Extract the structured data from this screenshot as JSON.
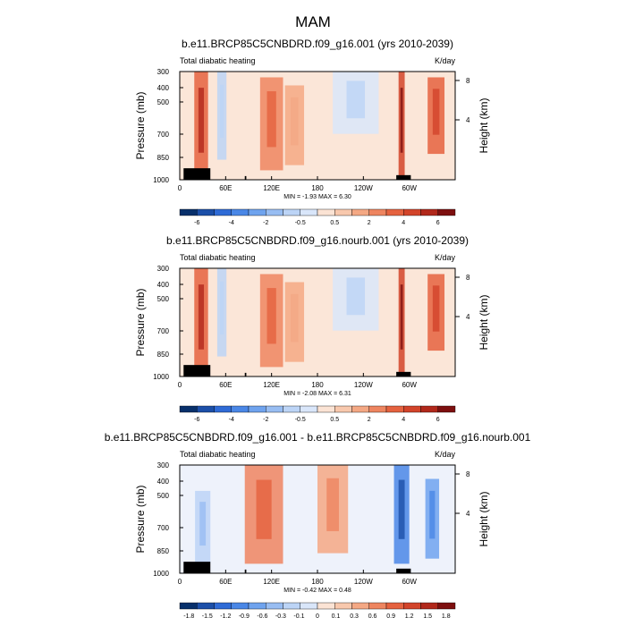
{
  "page": {
    "title": "MAM"
  },
  "chart_data": [
    {
      "type": "heatmap",
      "title": "b.e11.BRCP85C5CNBDRD.f09_g16.001 (yrs 2010-2039)",
      "subtitle_left": "Total diabatic heating",
      "units": "K/day",
      "ylabel": "Pressure (mb)",
      "ylabel_right": "Height (km)",
      "y_ticks": [
        "300",
        "400",
        "500",
        "700",
        "850",
        "1000"
      ],
      "y_ticks_right": [
        "8",
        "4"
      ],
      "x_ticks": [
        "0",
        "60E",
        "120E",
        "180",
        "120W",
        "60W"
      ],
      "minmax": "MIN =  -1.93  MAX =   6.30",
      "min": -1.93,
      "max": 6.3,
      "colorbar_labels": [
        "-6",
        "-4",
        "-2",
        "-0.5",
        "0.5",
        "2",
        "4",
        "6"
      ],
      "colorbar_colors": [
        "#08306b",
        "#1c4fa8",
        "#2f6bd6",
        "#4a87e6",
        "#6fa3ee",
        "#98bdf2",
        "#bcd4f6",
        "#d9e6fa",
        "#fbe3d4",
        "#f8c8ad",
        "#f4a884",
        "#ee8560",
        "#e5623f",
        "#d2442a",
        "#b1281b",
        "#7d0f0f"
      ],
      "features": [
        {
          "name": "band-africa-east",
          "lon": 28,
          "width": 18,
          "value": 4.5,
          "p_top": 300,
          "p_bottom": 1000
        },
        {
          "name": "indian-ocean-min",
          "lon": 55,
          "width": 12,
          "value": -1.2,
          "p_top": 300,
          "p_bottom": 800
        },
        {
          "name": "maritime-continent",
          "lon": 120,
          "width": 30,
          "value": 3.0,
          "p_top": 320,
          "p_bottom": 900
        },
        {
          "name": "west-pacific",
          "lon": 150,
          "width": 25,
          "value": 2.0,
          "p_top": 350,
          "p_bottom": 850
        },
        {
          "name": "east-pacific-min",
          "lon": 230,
          "width": 60,
          "value": -0.8,
          "p_top": 300,
          "p_bottom": 600
        },
        {
          "name": "south-america-andes",
          "lon": 290,
          "width": 8,
          "value": 5.5,
          "p_top": 300,
          "p_bottom": 1000
        },
        {
          "name": "atlantic-africa",
          "lon": 335,
          "width": 22,
          "value": 3.8,
          "p_top": 320,
          "p_bottom": 750
        }
      ],
      "topography": [
        {
          "lon_start": 5,
          "lon_end": 40,
          "p_top": 880
        },
        {
          "lon_start": 85,
          "lon_end": 87,
          "p_top": 960
        },
        {
          "lon_start": 283,
          "lon_end": 302,
          "p_top": 950
        }
      ]
    },
    {
      "type": "heatmap",
      "title": "b.e11.BRCP85C5CNBDRD.f09_g16.nourb.001 (yrs 2010-2039)",
      "subtitle_left": "Total diabatic heating",
      "units": "K/day",
      "ylabel": "Pressure (mb)",
      "ylabel_right": "Height (km)",
      "y_ticks": [
        "300",
        "400",
        "500",
        "700",
        "850",
        "1000"
      ],
      "y_ticks_right": [
        "8",
        "4"
      ],
      "x_ticks": [
        "0",
        "60E",
        "120E",
        "180",
        "120W",
        "60W"
      ],
      "minmax": "MIN =  -2.08  MAX =   6.31",
      "min": -2.08,
      "max": 6.31,
      "colorbar_labels": [
        "-6",
        "-4",
        "-2",
        "-0.5",
        "0.5",
        "2",
        "4",
        "6"
      ],
      "colorbar_colors": [
        "#08306b",
        "#1c4fa8",
        "#2f6bd6",
        "#4a87e6",
        "#6fa3ee",
        "#98bdf2",
        "#bcd4f6",
        "#d9e6fa",
        "#fbe3d4",
        "#f8c8ad",
        "#f4a884",
        "#ee8560",
        "#e5623f",
        "#d2442a",
        "#b1281b",
        "#7d0f0f"
      ],
      "features": [
        {
          "name": "band-africa-east",
          "lon": 28,
          "width": 18,
          "value": 4.5,
          "p_top": 300,
          "p_bottom": 1000
        },
        {
          "name": "indian-ocean-min",
          "lon": 55,
          "width": 12,
          "value": -1.3,
          "p_top": 300,
          "p_bottom": 800
        },
        {
          "name": "maritime-continent",
          "lon": 120,
          "width": 30,
          "value": 3.0,
          "p_top": 320,
          "p_bottom": 900
        },
        {
          "name": "west-pacific",
          "lon": 150,
          "width": 25,
          "value": 2.0,
          "p_top": 350,
          "p_bottom": 850
        },
        {
          "name": "east-pacific-min",
          "lon": 230,
          "width": 60,
          "value": -0.8,
          "p_top": 300,
          "p_bottom": 600
        },
        {
          "name": "south-america-andes",
          "lon": 290,
          "width": 8,
          "value": 5.5,
          "p_top": 300,
          "p_bottom": 1000
        },
        {
          "name": "atlantic-africa",
          "lon": 335,
          "width": 22,
          "value": 3.8,
          "p_top": 320,
          "p_bottom": 750
        }
      ],
      "topography": [
        {
          "lon_start": 5,
          "lon_end": 40,
          "p_top": 880
        },
        {
          "lon_start": 85,
          "lon_end": 87,
          "p_top": 960
        },
        {
          "lon_start": 283,
          "lon_end": 302,
          "p_top": 950
        }
      ]
    },
    {
      "type": "heatmap",
      "title": "b.e11.BRCP85C5CNBDRD.f09_g16.001 - b.e11.BRCP85C5CNBDRD.f09_g16.nourb.001",
      "subtitle_left": "Total diabatic heating",
      "units": "K/day",
      "ylabel": "Pressure (mb)",
      "ylabel_right": "Height (km)",
      "y_ticks": [
        "300",
        "400",
        "500",
        "700",
        "850",
        "1000"
      ],
      "y_ticks_right": [
        "8",
        "4"
      ],
      "x_ticks": [
        "0",
        "60E",
        "120E",
        "180",
        "120W",
        "60W"
      ],
      "minmax": "MIN =  -0.42  MAX =   0.48",
      "min": -0.42,
      "max": 0.48,
      "colorbar_labels": [
        "-1.8",
        "-1.5",
        "-1.2",
        "-0.9",
        "-0.6",
        "-0.3",
        "-0.1",
        "0",
        "0.1",
        "0.3",
        "0.6",
        "0.9",
        "1.2",
        "1.5",
        "1.8"
      ],
      "colorbar_colors": [
        "#08306b",
        "#1c4fa8",
        "#2f6bd6",
        "#4a87e6",
        "#6fa3ee",
        "#98bdf2",
        "#bcd4f6",
        "#d9e6fa",
        "#fbe3d4",
        "#f8c8ad",
        "#f4a884",
        "#ee8560",
        "#e5623f",
        "#d2442a",
        "#b1281b",
        "#7d0f0f"
      ],
      "features": [
        {
          "name": "west-pacific-pos",
          "lon": 110,
          "width": 50,
          "value": 0.25,
          "p_top": 300,
          "p_bottom": 900
        },
        {
          "name": "central-pacific-pos",
          "lon": 200,
          "width": 40,
          "value": 0.2,
          "p_top": 300,
          "p_bottom": 800
        },
        {
          "name": "south-america-neg",
          "lon": 290,
          "width": 20,
          "value": -0.35,
          "p_top": 300,
          "p_bottom": 900
        },
        {
          "name": "atlantic-neg",
          "lon": 330,
          "width": 18,
          "value": -0.25,
          "p_top": 350,
          "p_bottom": 850
        },
        {
          "name": "africa-mixed",
          "lon": 30,
          "width": 20,
          "value": -0.12,
          "p_top": 400,
          "p_bottom": 900
        }
      ],
      "topography": [
        {
          "lon_start": 5,
          "lon_end": 40,
          "p_top": 880
        },
        {
          "lon_start": 85,
          "lon_end": 87,
          "p_top": 960
        },
        {
          "lon_start": 283,
          "lon_end": 302,
          "p_top": 950
        }
      ]
    }
  ]
}
